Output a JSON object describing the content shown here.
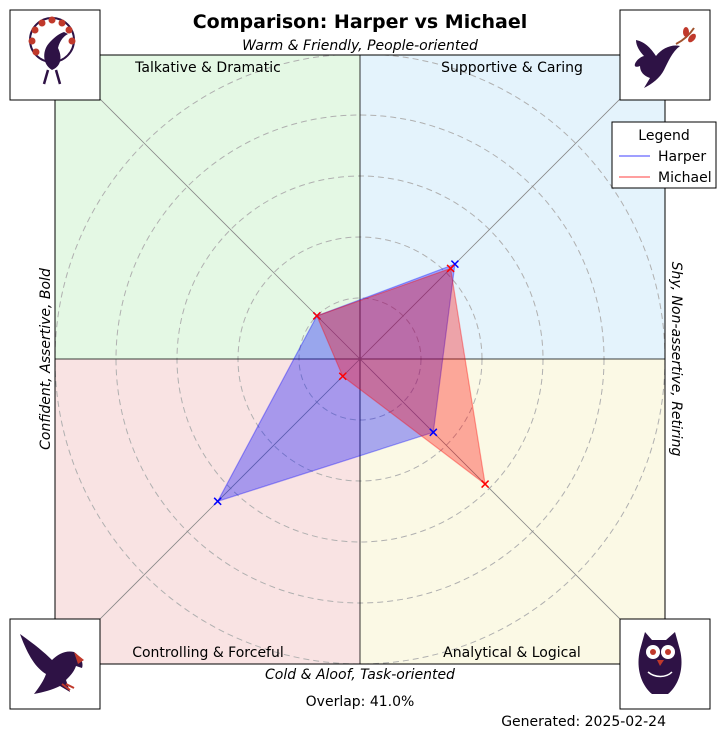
{
  "chart_data": {
    "type": "radar-overlay",
    "title": "Comparison: Harper vs Michael",
    "axis_labels": {
      "top": "Warm & Friendly, People-oriented",
      "bottom": "Cold & Aloof, Task-oriented",
      "left": "Confident, Assertive, Bold",
      "right": "Shy, Non-assertive, Retiring"
    },
    "quadrants": [
      {
        "label": "Talkative & Dramatic",
        "position": "top-left",
        "color": "#e4f8e4",
        "icon": "peacock-icon"
      },
      {
        "label": "Supportive & Caring",
        "position": "top-right",
        "color": "#e4f3fc",
        "icon": "dove-icon"
      },
      {
        "label": "Controlling & Forceful",
        "position": "bottom-left",
        "color": "#f9e3e3",
        "icon": "eagle-icon"
      },
      {
        "label": "Analytical & Logical",
        "position": "bottom-right",
        "color": "#fbf9e5",
        "icon": "owl-icon"
      }
    ],
    "axes_order": [
      "Supportive & Caring",
      "Analytical & Logical",
      "Controlling & Forceful",
      "Talkative & Dramatic"
    ],
    "rlim": [
      0,
      5
    ],
    "grid": true,
    "series": [
      {
        "name": "Harper",
        "color": "#0000ff",
        "values": [
          2.2,
          1.7,
          3.3,
          1.0
        ]
      },
      {
        "name": "Michael",
        "color": "#ff0000",
        "values": [
          2.1,
          2.9,
          0.4,
          1.0
        ]
      }
    ],
    "legend": {
      "title": "Legend",
      "placement": "upper-right"
    },
    "overlap_text": "Overlap: 41.0%",
    "generated_text": "Generated: 2025-02-24"
  }
}
